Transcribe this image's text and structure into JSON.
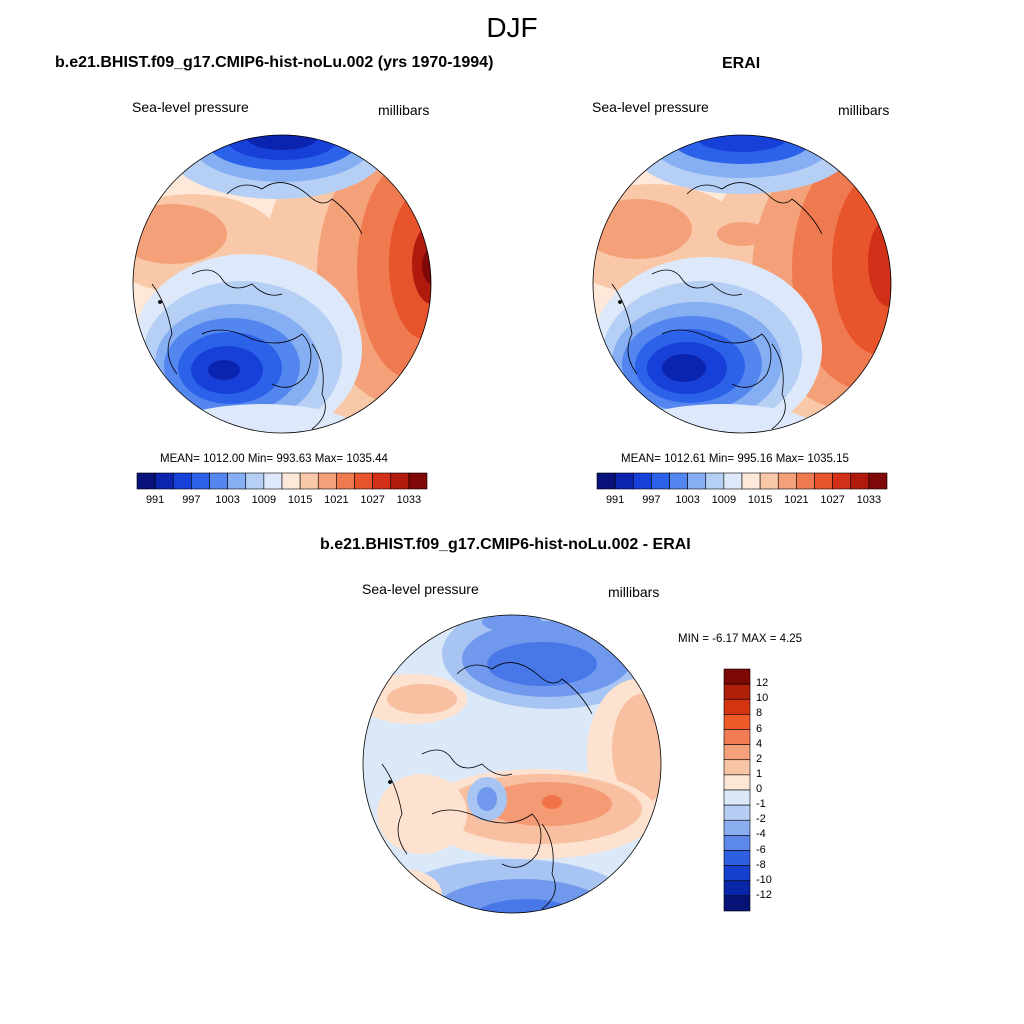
{
  "title": "DJF",
  "colors": {
    "abs_scale": [
      "#08107a",
      "#0b24b0",
      "#1640d8",
      "#2c62ea",
      "#5486ef",
      "#86aef2",
      "#b5cff5",
      "#dde9fa",
      "#fde8da",
      "#f8c8a8",
      "#f4a17a",
      "#f07a4f",
      "#e8542c",
      "#d23018",
      "#b01a0c",
      "#800808"
    ],
    "diff_scale": [
      "#081478",
      "#0a26a8",
      "#0f3cd4",
      "#2558e4",
      "#4878e8",
      "#7098ec",
      "#a8c4f2",
      "#dae8f8",
      "#fde2d0",
      "#f8c0a0",
      "#f49a74",
      "#f07248",
      "#e44a20",
      "#c02808",
      "#7e0804"
    ],
    "coastline": "#000000"
  },
  "panels": [
    {
      "id": "model",
      "title": "b.e21.BHIST.f09_g17.CMIP6-hist-noLu.002 (yrs 1970-1994)",
      "field": "Sea-level pressure",
      "units": "millibars",
      "stats": "MEAN= 1012.00  Min= 993.63  Max= 1035.44",
      "colorbar_labels": [
        "991",
        "997",
        "1003",
        "1009",
        "1015",
        "1021",
        "1027",
        "1033"
      ]
    },
    {
      "id": "obs",
      "title": "ERAI",
      "field": "Sea-level pressure",
      "units": "millibars",
      "stats": "MEAN= 1012.61  Min= 995.16  Max= 1035.15",
      "colorbar_labels": [
        "991",
        "997",
        "1003",
        "1009",
        "1015",
        "1021",
        "1027",
        "1033"
      ]
    },
    {
      "id": "diff",
      "title": "b.e21.BHIST.f09_g17.CMIP6-hist-noLu.002 - ERAI",
      "field": "Sea-level pressure",
      "units": "millibars",
      "stats": "MIN =  -6.17 MAX =   4.25",
      "colorbar_labels": [
        "12",
        "10",
        "8",
        "6",
        "4",
        "2",
        "1",
        "0",
        "-1",
        "-2",
        "-4",
        "-6",
        "-8",
        "-10",
        "-12"
      ]
    }
  ]
}
